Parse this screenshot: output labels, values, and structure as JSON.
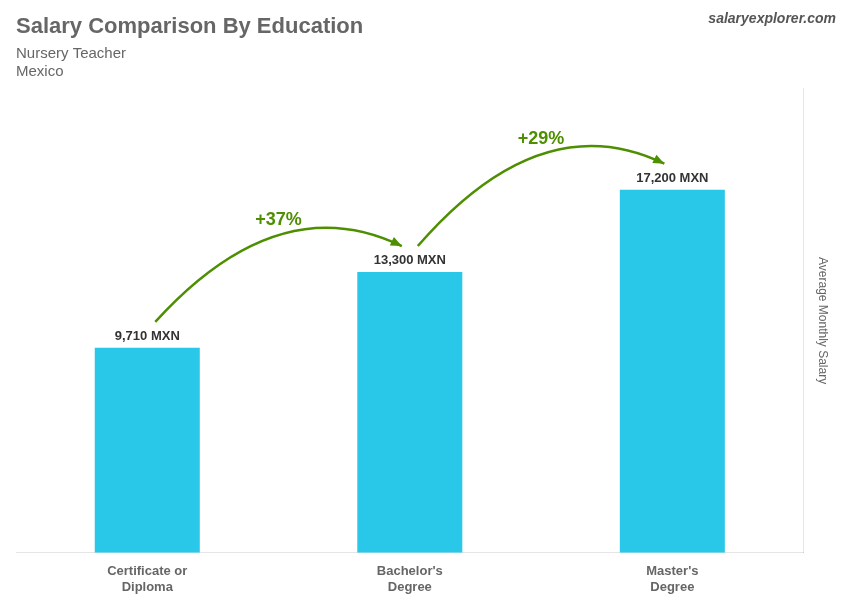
{
  "chart_data": {
    "type": "bar",
    "title": "Salary Comparison By Education",
    "subtitle": "Nursery Teacher",
    "y_label": "Average Monthly Salary",
    "categories": [
      "Certificate or\nDiploma",
      "Bachelor's\nDegree",
      "Master's\nDegree"
    ],
    "values": [
      9710,
      13300,
      17200
    ],
    "value_labels": [
      "9,710 MXN",
      "13,300 MXN",
      "17,200 MXN"
    ],
    "data_labels": true,
    "color": "#29c7e8",
    "ylim": [
      0,
      22000
    ],
    "grid": false,
    "tick_labels": "x",
    "annotations": [
      {
        "text": "Mexico"
      },
      {
        "text": "salaryexplorer.com"
      },
      {
        "text": "+37%",
        "from": "Certificate or\nDiploma",
        "to": "Bachelor's\nDegree"
      },
      {
        "text": "+29%",
        "from": "Bachelor's\nDegree",
        "to": "Master's\nDegree"
      }
    ]
  }
}
